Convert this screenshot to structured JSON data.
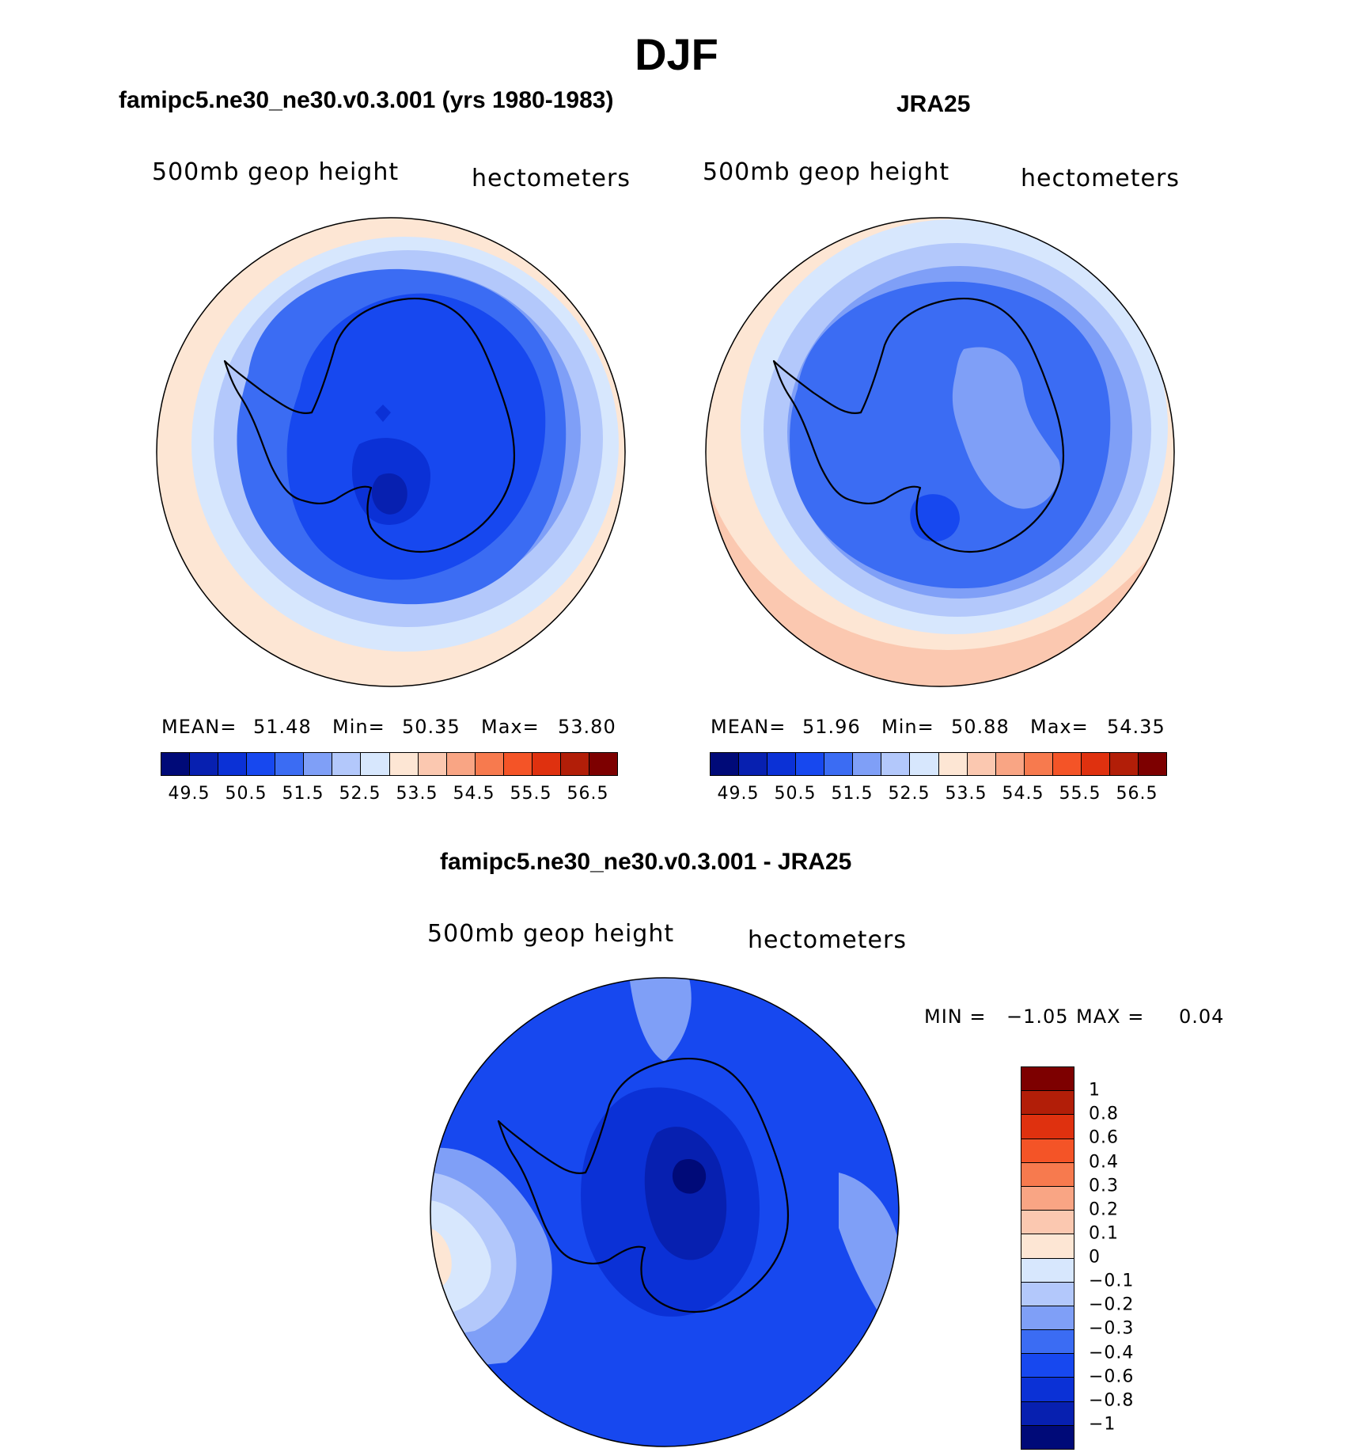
{
  "title": "DJF",
  "colors": {
    "abs_scale": [
      "#000a78",
      "#0720b0",
      "#0b31d6",
      "#1748ef",
      "#3b6cf3",
      "#7f9ff7",
      "#b3c8fb",
      "#d7e7fd",
      "#fde6d4",
      "#fbc8b0",
      "#f9a584",
      "#f77a4e",
      "#f45427",
      "#df310f",
      "#b21e08",
      "#7d0000"
    ],
    "diff_scale": [
      "#000a78",
      "#0720b0",
      "#0b31d6",
      "#1748ef",
      "#3b6cf3",
      "#7f9ff7",
      "#b3c8fb",
      "#d7e7fd",
      "#fde6d4",
      "#fbc8b0",
      "#f9a584",
      "#f77a4e",
      "#f45427",
      "#df310f",
      "#b21e08",
      "#7d0000"
    ]
  },
  "panels": [
    {
      "id": "model",
      "title": "famipc5.ne30_ne30.v0.3.001 (yrs 1980-1983)",
      "variable": "500mb geop height",
      "units": "hectometers",
      "stats": {
        "mean_label": "MEAN=",
        "mean": "51.48",
        "min_label": "Min=",
        "min": "50.35",
        "max_label": "Max=",
        "max": "53.80"
      }
    },
    {
      "id": "obs",
      "title": "JRA25",
      "variable": "500mb geop height",
      "units": "hectometers",
      "stats": {
        "mean_label": "MEAN=",
        "mean": "51.96",
        "min_label": "Min=",
        "min": "50.88",
        "max_label": "Max=",
        "max": "54.35"
      }
    }
  ],
  "abs_colorbar_labels": [
    "49.5",
    "50.5",
    "51.5",
    "52.5",
    "53.5",
    "54.5",
    "55.5",
    "56.5"
  ],
  "diff_panel": {
    "title": "famipc5.ne30_ne30.v0.3.001 - JRA25",
    "variable": "500mb geop height",
    "units": "hectometers",
    "min_label": "MIN =",
    "min": "−1.05",
    "max_label": "MAX =",
    "max": "0.04",
    "colorbar_labels": [
      "1",
      "0.8",
      "0.6",
      "0.4",
      "0.3",
      "0.2",
      "0.1",
      "0",
      "−0.1",
      "−0.2",
      "−0.3",
      "−0.4",
      "−0.6",
      "−0.8",
      "−1"
    ]
  }
}
